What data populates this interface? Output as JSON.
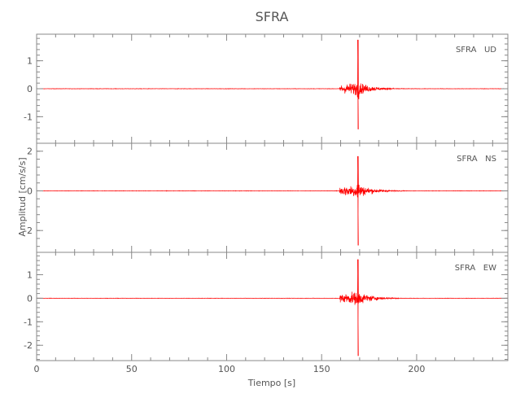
{
  "chart_data": {
    "type": "line",
    "title": "SFRA",
    "xlabel": "Tiempo [s]",
    "ylabel": "Amplitud [cm/s/s]",
    "xlim": [
      0,
      248
    ],
    "xticks": [
      0,
      50,
      100,
      150,
      200
    ],
    "grid": false,
    "series_color": "#ff0000",
    "panels": [
      {
        "label": "SFRA   UD",
        "ylim": [
          -1.95,
          1.95
        ],
        "yticks": [
          -1,
          0,
          1
        ],
        "noise": 0.01,
        "onset": 159.5,
        "peak_time": 169.2,
        "peak_max": 1.75,
        "peak_min": -1.45,
        "coda_amp": 0.38
      },
      {
        "label": "SFRA   NS",
        "ylim": [
          -3.1,
          2.4
        ],
        "yticks": [
          -2,
          0,
          2
        ],
        "noise": 0.015,
        "onset": 159.5,
        "peak_time": 169.2,
        "peak_max": 1.75,
        "peak_min": -2.75,
        "coda_amp": 0.55
      },
      {
        "label": "SFRA   EW",
        "ylim": [
          -2.65,
          1.95
        ],
        "yticks": [
          -2,
          -1,
          0,
          1
        ],
        "noise": 0.01,
        "onset": 159.5,
        "peak_time": 169.2,
        "peak_max": 1.65,
        "peak_min": -2.45,
        "coda_amp": 0.45
      }
    ]
  }
}
